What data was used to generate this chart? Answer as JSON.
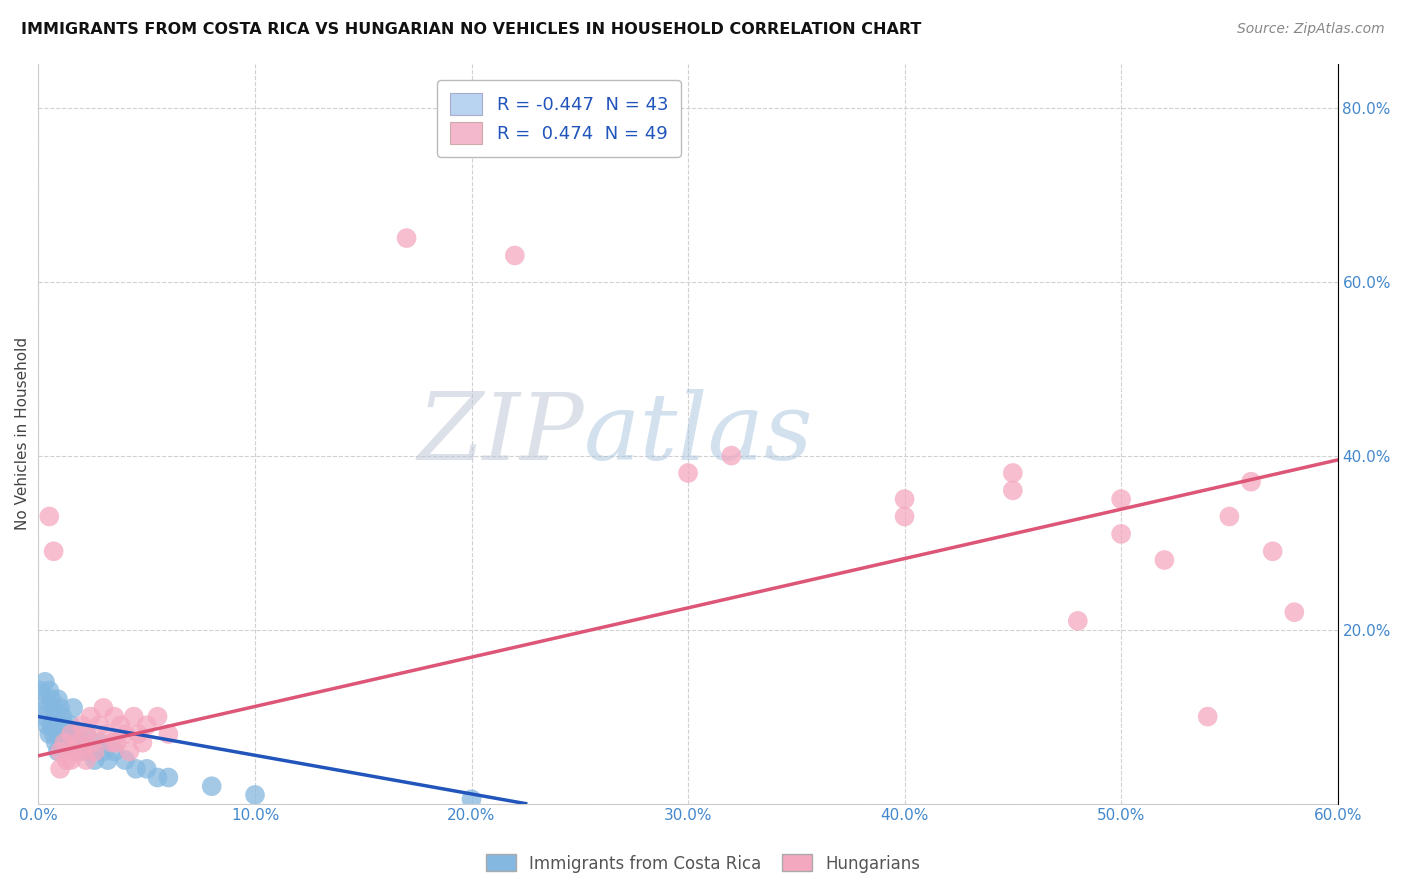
{
  "title": "IMMIGRANTS FROM COSTA RICA VS HUNGARIAN NO VEHICLES IN HOUSEHOLD CORRELATION CHART",
  "source": "Source: ZipAtlas.com",
  "ylabel": "No Vehicles in Household",
  "xlim": [
    0.0,
    0.6
  ],
  "ylim": [
    0.0,
    0.85
  ],
  "xtick_vals": [
    0.0,
    0.1,
    0.2,
    0.3,
    0.4,
    0.5,
    0.6
  ],
  "ytick_vals": [
    0.0,
    0.2,
    0.4,
    0.6,
    0.8
  ],
  "xtick_labels": [
    "0.0%",
    "10.0%",
    "20.0%",
    "30.0%",
    "40.0%",
    "50.0%",
    "60.0%"
  ],
  "ytick_labels_right": [
    "",
    "20.0%",
    "40.0%",
    "60.0%",
    "80.0%"
  ],
  "blue_scatter_color": "#85b8e0",
  "pink_scatter_color": "#f4a8bf",
  "blue_line_color": "#2255bb",
  "pink_line_color": "#dd5577",
  "legend_blue_fill": "#b8d4f0",
  "legend_pink_fill": "#f4b8cc",
  "legend_text_color": "#2255bb",
  "right_axis_color": "#4488cc",
  "bottom_tick_color": "#4488cc",
  "watermark_zip_color": "#c8cfe0",
  "watermark_atlas_color": "#b0c8e8",
  "blue_line_x0": 0.0,
  "blue_line_y0": 0.1,
  "blue_line_x1": 0.225,
  "blue_line_y1": 0.0,
  "pink_line_x0": 0.0,
  "pink_line_y0": 0.055,
  "pink_line_x1": 0.6,
  "pink_line_y1": 0.395,
  "blue_scatter": [
    [
      0.001,
      0.13
    ],
    [
      0.002,
      0.12
    ],
    [
      0.003,
      0.14
    ],
    [
      0.003,
      0.1
    ],
    [
      0.004,
      0.11
    ],
    [
      0.004,
      0.09
    ],
    [
      0.005,
      0.13
    ],
    [
      0.005,
      0.08
    ],
    [
      0.006,
      0.12
    ],
    [
      0.006,
      0.09
    ],
    [
      0.007,
      0.11
    ],
    [
      0.007,
      0.08
    ],
    [
      0.008,
      0.1
    ],
    [
      0.008,
      0.07
    ],
    [
      0.009,
      0.12
    ],
    [
      0.009,
      0.06
    ],
    [
      0.01,
      0.11
    ],
    [
      0.01,
      0.08
    ],
    [
      0.011,
      0.1
    ],
    [
      0.012,
      0.09
    ],
    [
      0.013,
      0.08
    ],
    [
      0.014,
      0.07
    ],
    [
      0.015,
      0.09
    ],
    [
      0.016,
      0.11
    ],
    [
      0.017,
      0.07
    ],
    [
      0.018,
      0.08
    ],
    [
      0.019,
      0.06
    ],
    [
      0.02,
      0.07
    ],
    [
      0.022,
      0.08
    ],
    [
      0.024,
      0.06
    ],
    [
      0.026,
      0.05
    ],
    [
      0.028,
      0.07
    ],
    [
      0.03,
      0.06
    ],
    [
      0.032,
      0.05
    ],
    [
      0.035,
      0.06
    ],
    [
      0.04,
      0.05
    ],
    [
      0.045,
      0.04
    ],
    [
      0.05,
      0.04
    ],
    [
      0.055,
      0.03
    ],
    [
      0.06,
      0.03
    ],
    [
      0.08,
      0.02
    ],
    [
      0.1,
      0.01
    ],
    [
      0.2,
      0.005
    ]
  ],
  "pink_scatter": [
    [
      0.005,
      0.33
    ],
    [
      0.007,
      0.29
    ],
    [
      0.01,
      0.06
    ],
    [
      0.01,
      0.04
    ],
    [
      0.012,
      0.07
    ],
    [
      0.013,
      0.05
    ],
    [
      0.015,
      0.08
    ],
    [
      0.015,
      0.05
    ],
    [
      0.016,
      0.06
    ],
    [
      0.018,
      0.07
    ],
    [
      0.02,
      0.09
    ],
    [
      0.02,
      0.06
    ],
    [
      0.022,
      0.08
    ],
    [
      0.022,
      0.05
    ],
    [
      0.024,
      0.1
    ],
    [
      0.025,
      0.07
    ],
    [
      0.026,
      0.06
    ],
    [
      0.028,
      0.09
    ],
    [
      0.03,
      0.11
    ],
    [
      0.032,
      0.08
    ],
    [
      0.034,
      0.07
    ],
    [
      0.035,
      0.1
    ],
    [
      0.036,
      0.07
    ],
    [
      0.038,
      0.09
    ],
    [
      0.04,
      0.08
    ],
    [
      0.042,
      0.06
    ],
    [
      0.044,
      0.1
    ],
    [
      0.046,
      0.08
    ],
    [
      0.048,
      0.07
    ],
    [
      0.05,
      0.09
    ],
    [
      0.055,
      0.1
    ],
    [
      0.06,
      0.08
    ],
    [
      0.17,
      0.65
    ],
    [
      0.22,
      0.63
    ],
    [
      0.3,
      0.38
    ],
    [
      0.32,
      0.4
    ],
    [
      0.4,
      0.35
    ],
    [
      0.4,
      0.33
    ],
    [
      0.45,
      0.36
    ],
    [
      0.45,
      0.38
    ],
    [
      0.48,
      0.21
    ],
    [
      0.5,
      0.35
    ],
    [
      0.5,
      0.31
    ],
    [
      0.52,
      0.28
    ],
    [
      0.54,
      0.1
    ],
    [
      0.55,
      0.33
    ],
    [
      0.56,
      0.37
    ],
    [
      0.57,
      0.29
    ],
    [
      0.58,
      0.22
    ]
  ]
}
